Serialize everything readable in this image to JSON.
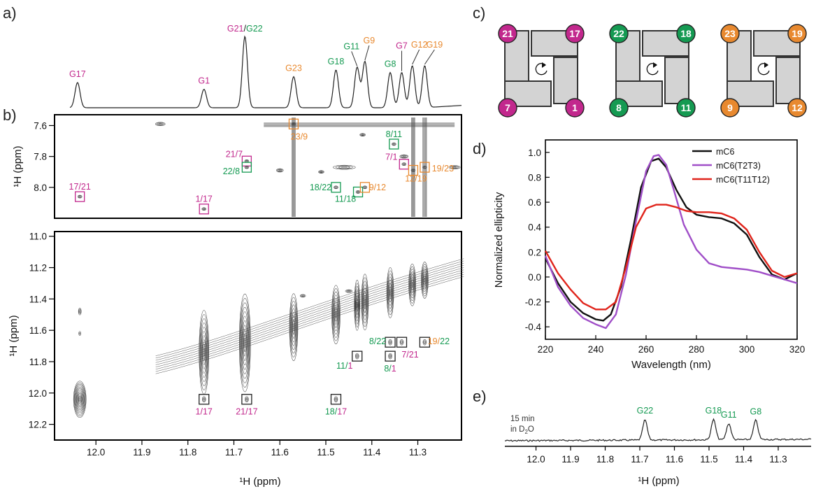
{
  "panel_labels": {
    "a": "a)",
    "b": "b)",
    "c": "c)",
    "d": "d)",
    "e": "e)"
  },
  "colors": {
    "magenta": "#c2288d",
    "green": "#159a52",
    "orange": "#e8892f",
    "black": "#111111",
    "purple": "#a04fc8",
    "red": "#e0241b"
  },
  "panel_a": {
    "peaks": [
      {
        "label": "G17",
        "ppm": 12.04,
        "color": "magenta",
        "h": 0.3
      },
      {
        "label": "G1",
        "ppm": 11.765,
        "color": "magenta",
        "h": 0.22
      },
      {
        "label": "G23",
        "ppm": 11.57,
        "color": "orange",
        "h": 0.37
      },
      {
        "label": "G18",
        "ppm": 11.478,
        "color": "green",
        "h": 0.45
      },
      {
        "label": "G11",
        "ppm": 11.432,
        "color": "green",
        "h": 0.48
      },
      {
        "label": "G9",
        "ppm": 11.415,
        "color": "orange",
        "h": 0.55
      },
      {
        "label": "G8",
        "ppm": 11.36,
        "color": "green",
        "h": 0.42
      },
      {
        "label": "G7",
        "ppm": 11.335,
        "color": "magenta",
        "h": 0.42
      },
      {
        "label": "G12",
        "ppm": 11.312,
        "color": "orange",
        "h": 0.5
      },
      {
        "label": "G19",
        "ppm": 11.285,
        "color": "orange",
        "h": 0.5
      }
    ],
    "combo_peak": {
      "ppm": 11.676,
      "h": 0.85,
      "part1": "G21",
      "sep": "/",
      "part2": "G22"
    }
  },
  "panel_b_top": {
    "ylabel": "¹H (ppm)",
    "yticks": [
      "7.6",
      "7.8",
      "8.0"
    ],
    "crosspeaks": [
      {
        "label": "17/21",
        "ppm_x": 12.035,
        "ppm_y": 8.06,
        "box": "magenta",
        "c1": "magenta",
        "c2": "magenta"
      },
      {
        "label": "1/17",
        "ppm_x": 11.765,
        "ppm_y": 8.14,
        "box": "magenta",
        "c1": "magenta",
        "c2": "magenta"
      },
      {
        "label": "21/7",
        "ppm_x": 11.672,
        "ppm_y": 7.83,
        "box": "magenta",
        "c1": "magenta",
        "c2": "magenta"
      },
      {
        "label": "22/8",
        "ppm_x": 11.672,
        "ppm_y": 7.87,
        "box": "green",
        "c1": "green",
        "c2": "green"
      },
      {
        "label": "23/9",
        "ppm_x": 11.57,
        "ppm_y": 7.59,
        "box": "orange",
        "c1": "orange",
        "c2": "orange"
      },
      {
        "label": "8/11",
        "ppm_x": 11.352,
        "ppm_y": 7.72,
        "box": "green",
        "c1": "green",
        "c2": "green"
      },
      {
        "label": "7/1",
        "ppm_x": 11.33,
        "ppm_y": 7.85,
        "box": "magenta",
        "c1": "magenta",
        "c2": "magenta"
      },
      {
        "label": "18/22",
        "ppm_x": 11.478,
        "ppm_y": 8.0,
        "box": "green",
        "c1": "green",
        "c2": "green"
      },
      {
        "label": "11/18",
        "ppm_x": 11.43,
        "ppm_y": 8.03,
        "box": "green",
        "c1": "green",
        "c2": "green"
      },
      {
        "label": "9/12",
        "ppm_x": 11.415,
        "ppm_y": 8.0,
        "box": "orange",
        "c1": "orange",
        "c2": "orange"
      },
      {
        "label": "12/19",
        "ppm_x": 11.31,
        "ppm_y": 7.89,
        "box": "orange",
        "c1": "orange",
        "c2": "orange"
      },
      {
        "label": "19/23",
        "ppm_x": 11.285,
        "ppm_y": 7.87,
        "box": "orange",
        "c1": "orange",
        "c2": "orange"
      }
    ]
  },
  "panel_b_bottom": {
    "ylabel": "¹H (ppm)",
    "xlabel": "¹H (ppm)",
    "yticks": [
      "11.0",
      "11.2",
      "11.4",
      "11.6",
      "11.8",
      "12.0",
      "12.2"
    ],
    "xticks": [
      "12.0",
      "11.9",
      "11.8",
      "11.7",
      "11.6",
      "11.5",
      "11.4",
      "11.3"
    ],
    "crosspeaks": [
      {
        "label": "1/17",
        "ppm_x": 11.765,
        "ppm_y": 12.04,
        "c1": "magenta",
        "c2": "magenta"
      },
      {
        "label": "21/17",
        "ppm_x": 11.672,
        "ppm_y": 12.04,
        "c1": "magenta",
        "c2": "magenta"
      },
      {
        "label": "18/17",
        "ppm_x": 11.478,
        "ppm_y": 12.04,
        "c1": "green",
        "c2": "magenta"
      },
      {
        "label": "11/1",
        "ppm_x": 11.432,
        "ppm_y": 11.765,
        "c1": "green",
        "c2": "magenta"
      },
      {
        "label": "8/1",
        "ppm_x": 11.36,
        "ppm_y": 11.765,
        "c1": "green",
        "c2": "magenta"
      },
      {
        "label": "8/22",
        "ppm_x": 11.36,
        "ppm_y": 11.676,
        "c1": "green",
        "c2": "green"
      },
      {
        "label": "7/21",
        "ppm_x": 11.335,
        "ppm_y": 11.676,
        "c1": "magenta",
        "c2": "magenta"
      },
      {
        "label": "19/22",
        "ppm_x": 11.285,
        "ppm_y": 11.676,
        "c1": "orange",
        "c2": "green"
      }
    ]
  },
  "panel_c": {
    "quartets": [
      {
        "corners": [
          "21",
          "17",
          "7",
          "1"
        ],
        "color": "magenta"
      },
      {
        "corners": [
          "22",
          "18",
          "8",
          "11"
        ],
        "color": "green"
      },
      {
        "corners": [
          "23",
          "19",
          "9",
          "12"
        ],
        "color": "orange"
      }
    ]
  },
  "chart_data": {
    "type": "line",
    "xlabel": "Wavelength (nm)",
    "ylabel": "Normalized ellipticity",
    "xlim": [
      220,
      320
    ],
    "ylim": [
      -0.5,
      1.1
    ],
    "xticks": [
      "220",
      "240",
      "260",
      "280",
      "300",
      "320"
    ],
    "yticks": [
      "-0.4",
      "-0.2",
      "0.0",
      "0.2",
      "0.4",
      "0.6",
      "0.8",
      "1.0"
    ],
    "legend_position": "top-right",
    "series": [
      {
        "name": "mC6",
        "color": "black",
        "x": [
          220,
          225,
          230,
          235,
          240,
          243,
          246,
          250,
          254,
          258,
          262,
          265,
          268,
          272,
          276,
          280,
          285,
          290,
          295,
          300,
          305,
          310,
          315,
          320
        ],
        "y": [
          0.15,
          -0.05,
          -0.2,
          -0.29,
          -0.34,
          -0.35,
          -0.3,
          -0.08,
          0.3,
          0.72,
          0.93,
          0.95,
          0.88,
          0.7,
          0.56,
          0.5,
          0.48,
          0.47,
          0.43,
          0.34,
          0.16,
          0.02,
          -0.02,
          0.03
        ]
      },
      {
        "name": "mC6(T2T3)",
        "color": "purple",
        "x": [
          220,
          225,
          230,
          235,
          240,
          244,
          248,
          252,
          256,
          260,
          263,
          265,
          268,
          271,
          275,
          280,
          285,
          290,
          295,
          300,
          305,
          310,
          315,
          320
        ],
        "y": [
          0.17,
          -0.08,
          -0.23,
          -0.33,
          -0.38,
          -0.41,
          -0.3,
          0.02,
          0.45,
          0.85,
          0.97,
          0.98,
          0.9,
          0.7,
          0.42,
          0.22,
          0.11,
          0.08,
          0.07,
          0.06,
          0.04,
          0.01,
          -0.02,
          -0.05
        ]
      },
      {
        "name": "mC6(T11T12)",
        "color": "red",
        "x": [
          220,
          225,
          230,
          235,
          240,
          244,
          248,
          252,
          256,
          260,
          264,
          268,
          272,
          276,
          280,
          285,
          290,
          295,
          300,
          305,
          310,
          315,
          320
        ],
        "y": [
          0.21,
          0.03,
          -0.1,
          -0.21,
          -0.26,
          -0.26,
          -0.2,
          0.08,
          0.4,
          0.55,
          0.58,
          0.58,
          0.56,
          0.53,
          0.52,
          0.52,
          0.51,
          0.47,
          0.38,
          0.2,
          0.05,
          0.0,
          0.03
        ]
      }
    ]
  },
  "panel_e": {
    "note_line1": "15 min",
    "note_line2_pre": "in D",
    "note_line2_sub": "2",
    "note_line2_post": "O",
    "xlabel": "¹H (ppm)",
    "xticks": [
      "12.0",
      "11.9",
      "11.8",
      "11.7",
      "11.6",
      "11.5",
      "11.4",
      "11.3"
    ],
    "peaks": [
      {
        "label": "G22",
        "ppm": 11.685,
        "color": "green",
        "h": 0.72
      },
      {
        "label": "G18",
        "ppm": 11.487,
        "color": "green",
        "h": 0.72
      },
      {
        "label": "G11",
        "ppm": 11.443,
        "color": "green",
        "h": 0.58
      },
      {
        "label": "G8",
        "ppm": 11.365,
        "color": "green",
        "h": 0.69
      }
    ]
  }
}
